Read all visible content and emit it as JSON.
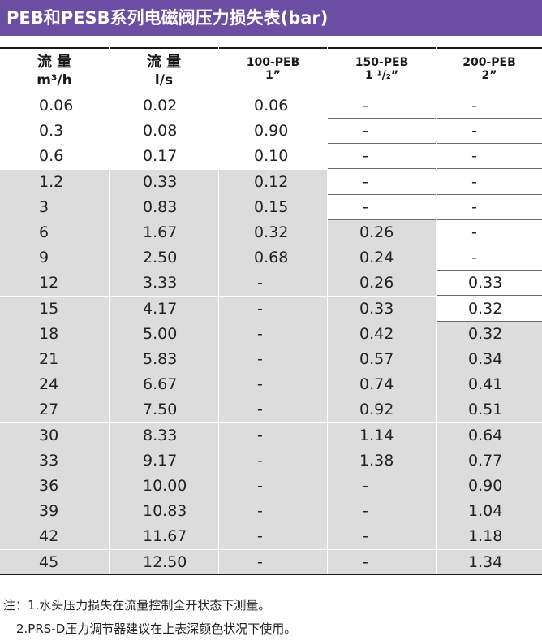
{
  "title": "PEB和PESB系列电磁阀压力损失表(bar)",
  "headers": [
    {
      "line1": "流 量",
      "line2": "m³/h"
    },
    {
      "line1": "流 量",
      "line2": "l/s"
    },
    {
      "line1": "100-PEB",
      "line2": "1”"
    },
    {
      "line1": "150-PEB",
      "line2": "1 ¹/₂”"
    },
    {
      "line1": "200-PEB",
      "line2": "2”"
    }
  ],
  "rows": [
    [
      "0.06",
      "0.02",
      "0.06",
      "-",
      "-"
    ],
    [
      "0.3",
      "0.08",
      "0.90",
      "-",
      "-"
    ],
    [
      "0.6",
      "0.17",
      "0.10",
      "-",
      "-"
    ],
    [
      "1.2",
      "0.33",
      "0.12",
      "-",
      "-"
    ],
    [
      "3",
      "0.83",
      "0.15",
      "-",
      "-"
    ],
    [
      "6",
      "1.67",
      "0.32",
      "0.26",
      "-"
    ],
    [
      "9",
      "2.50",
      "0.68",
      "0.24",
      "-"
    ],
    [
      "12",
      "3.33",
      "-",
      "0.26",
      "0.33"
    ],
    [
      "15",
      "4.17",
      "-",
      "0.33",
      "0.32"
    ],
    [
      "18",
      "5.00",
      "-",
      "0.42",
      "0.32"
    ],
    [
      "21",
      "5.83",
      "-",
      "0.57",
      "0.34"
    ],
    [
      "24",
      "6.67",
      "-",
      "0.74",
      "0.41"
    ],
    [
      "27",
      "7.50",
      "-",
      "0.92",
      "0.51"
    ],
    [
      "30",
      "8.33",
      "-",
      "1.14",
      "0.64"
    ],
    [
      "33",
      "9.17",
      "-",
      "1.38",
      "0.77"
    ],
    [
      "36",
      "10.00",
      "-",
      "-",
      "0.90"
    ],
    [
      "39",
      "10.83",
      "-",
      "-",
      "1.04"
    ],
    [
      "42",
      "11.67",
      "-",
      "-",
      "1.18"
    ],
    [
      "45",
      "12.50",
      "-",
      "-",
      "1.34"
    ]
  ],
  "shaded": [
    [
      false,
      false,
      false,
      false,
      false
    ],
    [
      false,
      false,
      false,
      false,
      false
    ],
    [
      false,
      false,
      false,
      false,
      false
    ],
    [
      true,
      true,
      true,
      false,
      false
    ],
    [
      true,
      true,
      true,
      false,
      false
    ],
    [
      true,
      true,
      true,
      true,
      false
    ],
    [
      true,
      true,
      true,
      true,
      false
    ],
    [
      true,
      true,
      true,
      true,
      false
    ],
    [
      true,
      true,
      true,
      true,
      false
    ],
    [
      true,
      true,
      true,
      true,
      true
    ],
    [
      true,
      true,
      true,
      true,
      true
    ],
    [
      true,
      true,
      true,
      true,
      true
    ],
    [
      true,
      true,
      true,
      true,
      true
    ],
    [
      true,
      true,
      true,
      true,
      true
    ],
    [
      true,
      true,
      true,
      true,
      true
    ],
    [
      true,
      true,
      true,
      true,
      true
    ],
    [
      true,
      true,
      true,
      true,
      true
    ],
    [
      true,
      true,
      true,
      true,
      true
    ],
    [
      true,
      true,
      true,
      true,
      true
    ]
  ],
  "notes": [
    "注：1.水头压力损失在流量控制全开状态下测量。",
    "2.PRS-D压力调节器建议在上表深颜色状况下使用。"
  ],
  "colors": {
    "title_bar": "#6b4ea2",
    "shade": "#dcdcdc"
  }
}
